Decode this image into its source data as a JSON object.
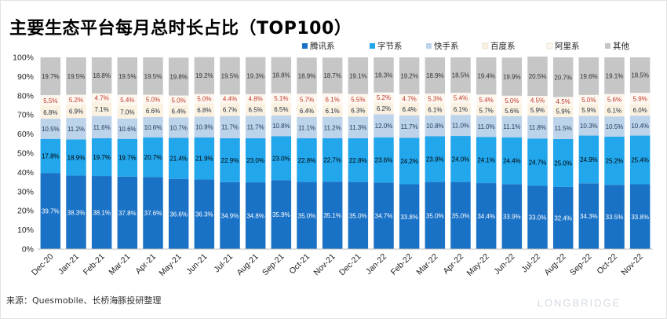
{
  "title": "主要生态平台每月总时长占比（TOP100）",
  "source": "来源：Quesmobile、长桥海豚投研整理",
  "watermark": "LONGBRIDGE",
  "chart_data": {
    "type": "bar",
    "stacked": true,
    "percent": true,
    "categories": [
      "Dec-20",
      "Jan-21",
      "Feb-21",
      "Mar-21",
      "Apr-21",
      "May-21",
      "Jun-21",
      "Jul-21",
      "Aug-21",
      "Sep-21",
      "Oct-21",
      "Nov-21",
      "Dec-21",
      "Jan-22",
      "Feb-22",
      "Mar-22",
      "Apr-22",
      "May-22",
      "Jun-22",
      "Jul-22",
      "Aug-22",
      "Sep-22",
      "Oct-22",
      "Nov-22"
    ],
    "ylim": [
      0,
      100
    ],
    "yticks": [
      "0%",
      "10%",
      "20%",
      "30%",
      "40%",
      "50%",
      "60%",
      "70%",
      "80%",
      "90%",
      "100%"
    ],
    "legend_position": "top-right",
    "grid": false,
    "series": [
      {
        "name": "腾讯系",
        "color": "#1a72c6",
        "values": [
          39.7,
          38.3,
          38.1,
          37.8,
          37.6,
          36.6,
          36.3,
          34.9,
          34.8,
          35.9,
          35.0,
          35.1,
          35.0,
          34.7,
          33.8,
          35.0,
          35.0,
          34.4,
          33.9,
          33.0,
          32.4,
          34.3,
          33.5,
          33.8
        ]
      },
      {
        "name": "字节系",
        "color": "#22a6ec",
        "values": [
          17.8,
          18.9,
          19.7,
          19.7,
          20.7,
          21.4,
          21.9,
          22.9,
          23.0,
          23.0,
          22.8,
          22.7,
          22.8,
          23.6,
          24.2,
          23.9,
          24.0,
          24.1,
          24.4,
          24.7,
          25.0,
          24.9,
          25.2,
          25.4
        ]
      },
      {
        "name": "快手系",
        "color": "#bdd3ea",
        "values": [
          10.5,
          11.2,
          11.6,
          10.6,
          10.6,
          10.7,
          10.9,
          11.7,
          11.7,
          10.8,
          11.1,
          11.2,
          11.3,
          12.0,
          11.7,
          10.8,
          11.0,
          11.0,
          11.1,
          11.8,
          11.5,
          10.3,
          10.5,
          10.4
        ]
      },
      {
        "name": "百度系",
        "color": "#fbf1e0",
        "values": [
          6.8,
          6.9,
          7.1,
          7.0,
          6.6,
          6.4,
          6.8,
          6.7,
          6.5,
          6.5,
          6.4,
          6.1,
          6.3,
          6.2,
          6.4,
          6.1,
          6.1,
          5.7,
          5.6,
          5.9,
          5.9,
          5.9,
          6.1,
          6.0
        ]
      },
      {
        "name": "阿里系",
        "color": "#fdf7ef",
        "values": [
          5.5,
          5.2,
          4.7,
          5.4,
          5.0,
          5.0,
          5.0,
          4.4,
          4.8,
          5.1,
          5.7,
          6.1,
          5.5,
          5.2,
          4.7,
          5.3,
          5.4,
          5.4,
          5.0,
          4.5,
          4.5,
          5.0,
          5.6,
          5.9
        ]
      },
      {
        "name": "其他",
        "color": "#c6c6c6",
        "values": [
          19.7,
          19.5,
          18.8,
          19.5,
          19.5,
          19.8,
          19.2,
          19.5,
          19.3,
          18.8,
          18.9,
          18.7,
          19.1,
          18.3,
          19.2,
          18.9,
          18.5,
          19.4,
          19.9,
          20.5,
          20.7,
          19.6,
          19.1,
          18.5
        ]
      }
    ],
    "label_colors": [
      "#ffffff",
      "#000000",
      "#1f3a5a",
      "#1f2d3d",
      "#c0392b",
      "#333333"
    ]
  }
}
